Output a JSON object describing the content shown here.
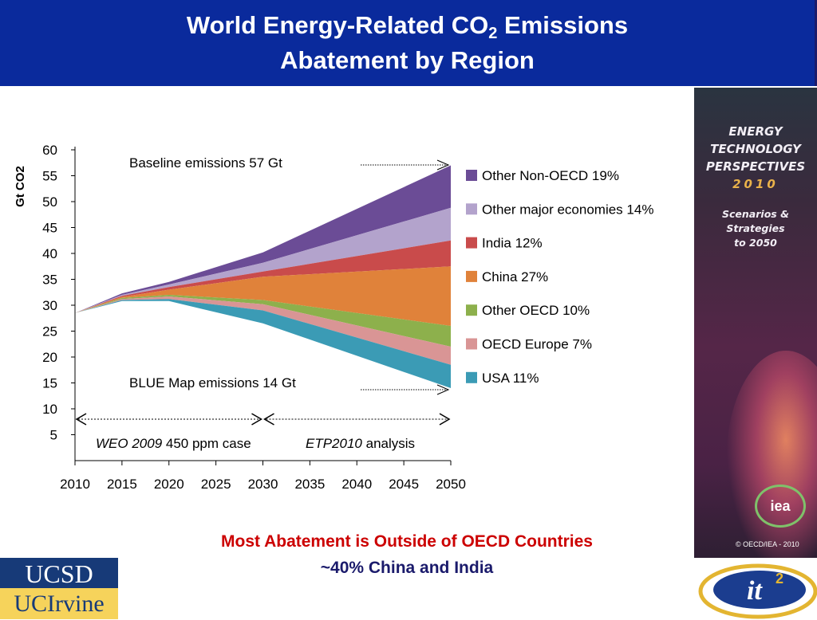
{
  "header": {
    "line1_prefix": "World Energy-Related CO",
    "line1_sub": "2",
    "line1_suffix": " Emissions",
    "line2": "Abatement by Region"
  },
  "chart_data": {
    "type": "area",
    "ylabel": "Gt CO2",
    "ylim": [
      0,
      60
    ],
    "yticks": [
      5,
      10,
      15,
      20,
      25,
      30,
      35,
      40,
      45,
      50,
      55,
      60
    ],
    "xlim": [
      2010,
      2050
    ],
    "xticks": [
      2010,
      2015,
      2020,
      2025,
      2030,
      2035,
      2040,
      2045,
      2050
    ],
    "x": [
      2010,
      2015,
      2020,
      2030,
      2050
    ],
    "baseline_label": "Baseline emissions 57 Gt",
    "bluemap_label": "BLUE Map  emissions 14 Gt",
    "period_left_italic": "WEO 2009",
    "period_left_rest": " 450 ppm case",
    "period_right_italic": "ETP2010",
    "period_right_rest": " analysis",
    "period_split": 2030,
    "series": [
      {
        "name": "Other Non-OECD 19%",
        "color": "#6b4c96",
        "top": [
          28.5,
          32.3,
          34.5,
          40.2,
          57.0
        ]
      },
      {
        "name": "Other major economies 14%",
        "color": "#b3a3cc",
        "top": [
          28.5,
          32.0,
          34.0,
          38.2,
          48.8
        ]
      },
      {
        "name": "India 12%",
        "color": "#c94b4b",
        "top": [
          28.5,
          31.8,
          33.5,
          36.5,
          42.5
        ]
      },
      {
        "name": "China 27%",
        "color": "#e0823a",
        "top": [
          28.5,
          31.6,
          33.0,
          35.5,
          37.5
        ]
      },
      {
        "name": "Other OECD 10%",
        "color": "#8db04c",
        "top": [
          28.5,
          31.4,
          32.0,
          31.0,
          26.0
        ]
      },
      {
        "name": "OECD Europe 7%",
        "color": "#d99595",
        "top": [
          28.5,
          31.2,
          31.7,
          30.2,
          22.0
        ]
      },
      {
        "name": "USA 11%",
        "color": "#3b9bb5",
        "top": [
          28.5,
          31.0,
          31.2,
          29.0,
          18.5
        ]
      }
    ],
    "bottom": [
      28.5,
      30.8,
      30.8,
      26.5,
      14.0
    ]
  },
  "captions": {
    "line1": "Most Abatement is Outside of OECD Countries",
    "line2": "~40% China and India"
  },
  "cover": {
    "title_lines": [
      "ENERGY",
      "TECHNOLOGY",
      "PERSPECTIVES"
    ],
    "year": "2010",
    "subtitle_lines": [
      "Scenarios &",
      "Strategies",
      "to 2050"
    ],
    "logo": "iea",
    "copyright": "© OECD/IEA - 2010"
  },
  "logos": {
    "ucsd": "UCSD",
    "uci": "UCIrvine",
    "it2": "it",
    "it2_sup": "2"
  }
}
